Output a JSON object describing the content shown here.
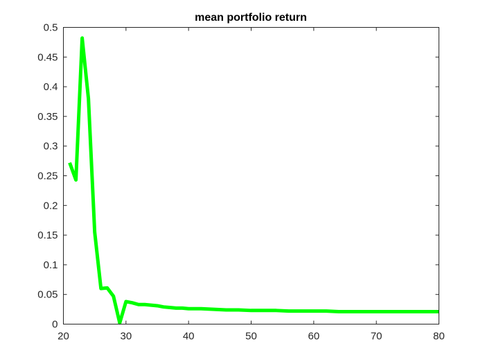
{
  "chart_data": {
    "type": "line",
    "title": "mean portfolio return",
    "xlabel": "",
    "ylabel": "",
    "xlim": [
      20,
      80
    ],
    "ylim": [
      0,
      0.5
    ],
    "xticks": [
      20,
      30,
      40,
      50,
      60,
      70,
      80
    ],
    "yticks": [
      0,
      0.05,
      0.1,
      0.15,
      0.2,
      0.25,
      0.3,
      0.35,
      0.4,
      0.45,
      0.5
    ],
    "xtick_labels": [
      "20",
      "30",
      "40",
      "50",
      "60",
      "70",
      "80"
    ],
    "ytick_labels": [
      "0",
      "0.05",
      "0.1",
      "0.15",
      "0.2",
      "0.25",
      "0.3",
      "0.35",
      "0.4",
      "0.45",
      "0.5"
    ],
    "grid": false,
    "series": [
      {
        "color": "#00ff00",
        "x": [
          21,
          22,
          23,
          24,
          25,
          26,
          27,
          28,
          29,
          30,
          31,
          32,
          33,
          34,
          35,
          36,
          37,
          38,
          39,
          40,
          42,
          44,
          46,
          48,
          50,
          52,
          54,
          56,
          58,
          60,
          62,
          64,
          66,
          68,
          70,
          72,
          74,
          76,
          78,
          80
        ],
        "y": [
          0.272,
          0.243,
          0.482,
          0.38,
          0.155,
          0.06,
          0.061,
          0.047,
          0.002,
          0.038,
          0.036,
          0.033,
          0.033,
          0.032,
          0.031,
          0.029,
          0.028,
          0.027,
          0.027,
          0.026,
          0.026,
          0.025,
          0.024,
          0.024,
          0.023,
          0.023,
          0.023,
          0.022,
          0.022,
          0.022,
          0.022,
          0.021,
          0.021,
          0.021,
          0.021,
          0.021,
          0.021,
          0.021,
          0.021,
          0.021
        ]
      }
    ]
  }
}
